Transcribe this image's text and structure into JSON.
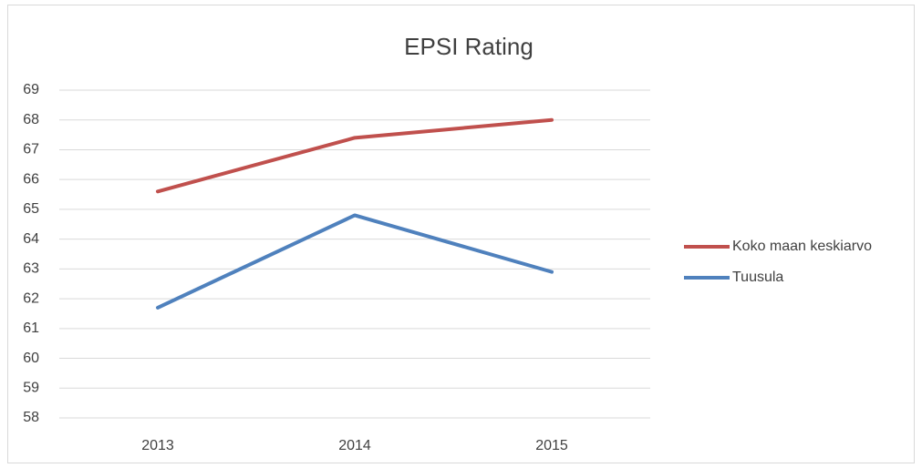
{
  "chart_data": {
    "type": "line",
    "title": "EPSI Rating",
    "categories": [
      "2013",
      "2014",
      "2015"
    ],
    "series": [
      {
        "name": "Koko maan keskiarvo",
        "color": "#c0504d",
        "values": [
          65.6,
          67.4,
          68.0
        ]
      },
      {
        "name": "Tuusula",
        "color": "#4f81bd",
        "values": [
          61.7,
          64.8,
          62.9
        ]
      }
    ],
    "ylim": [
      58,
      69
    ],
    "yticks": [
      58,
      59,
      60,
      61,
      62,
      63,
      64,
      65,
      66,
      67,
      68,
      69
    ],
    "grid": true,
    "legend": "right"
  }
}
